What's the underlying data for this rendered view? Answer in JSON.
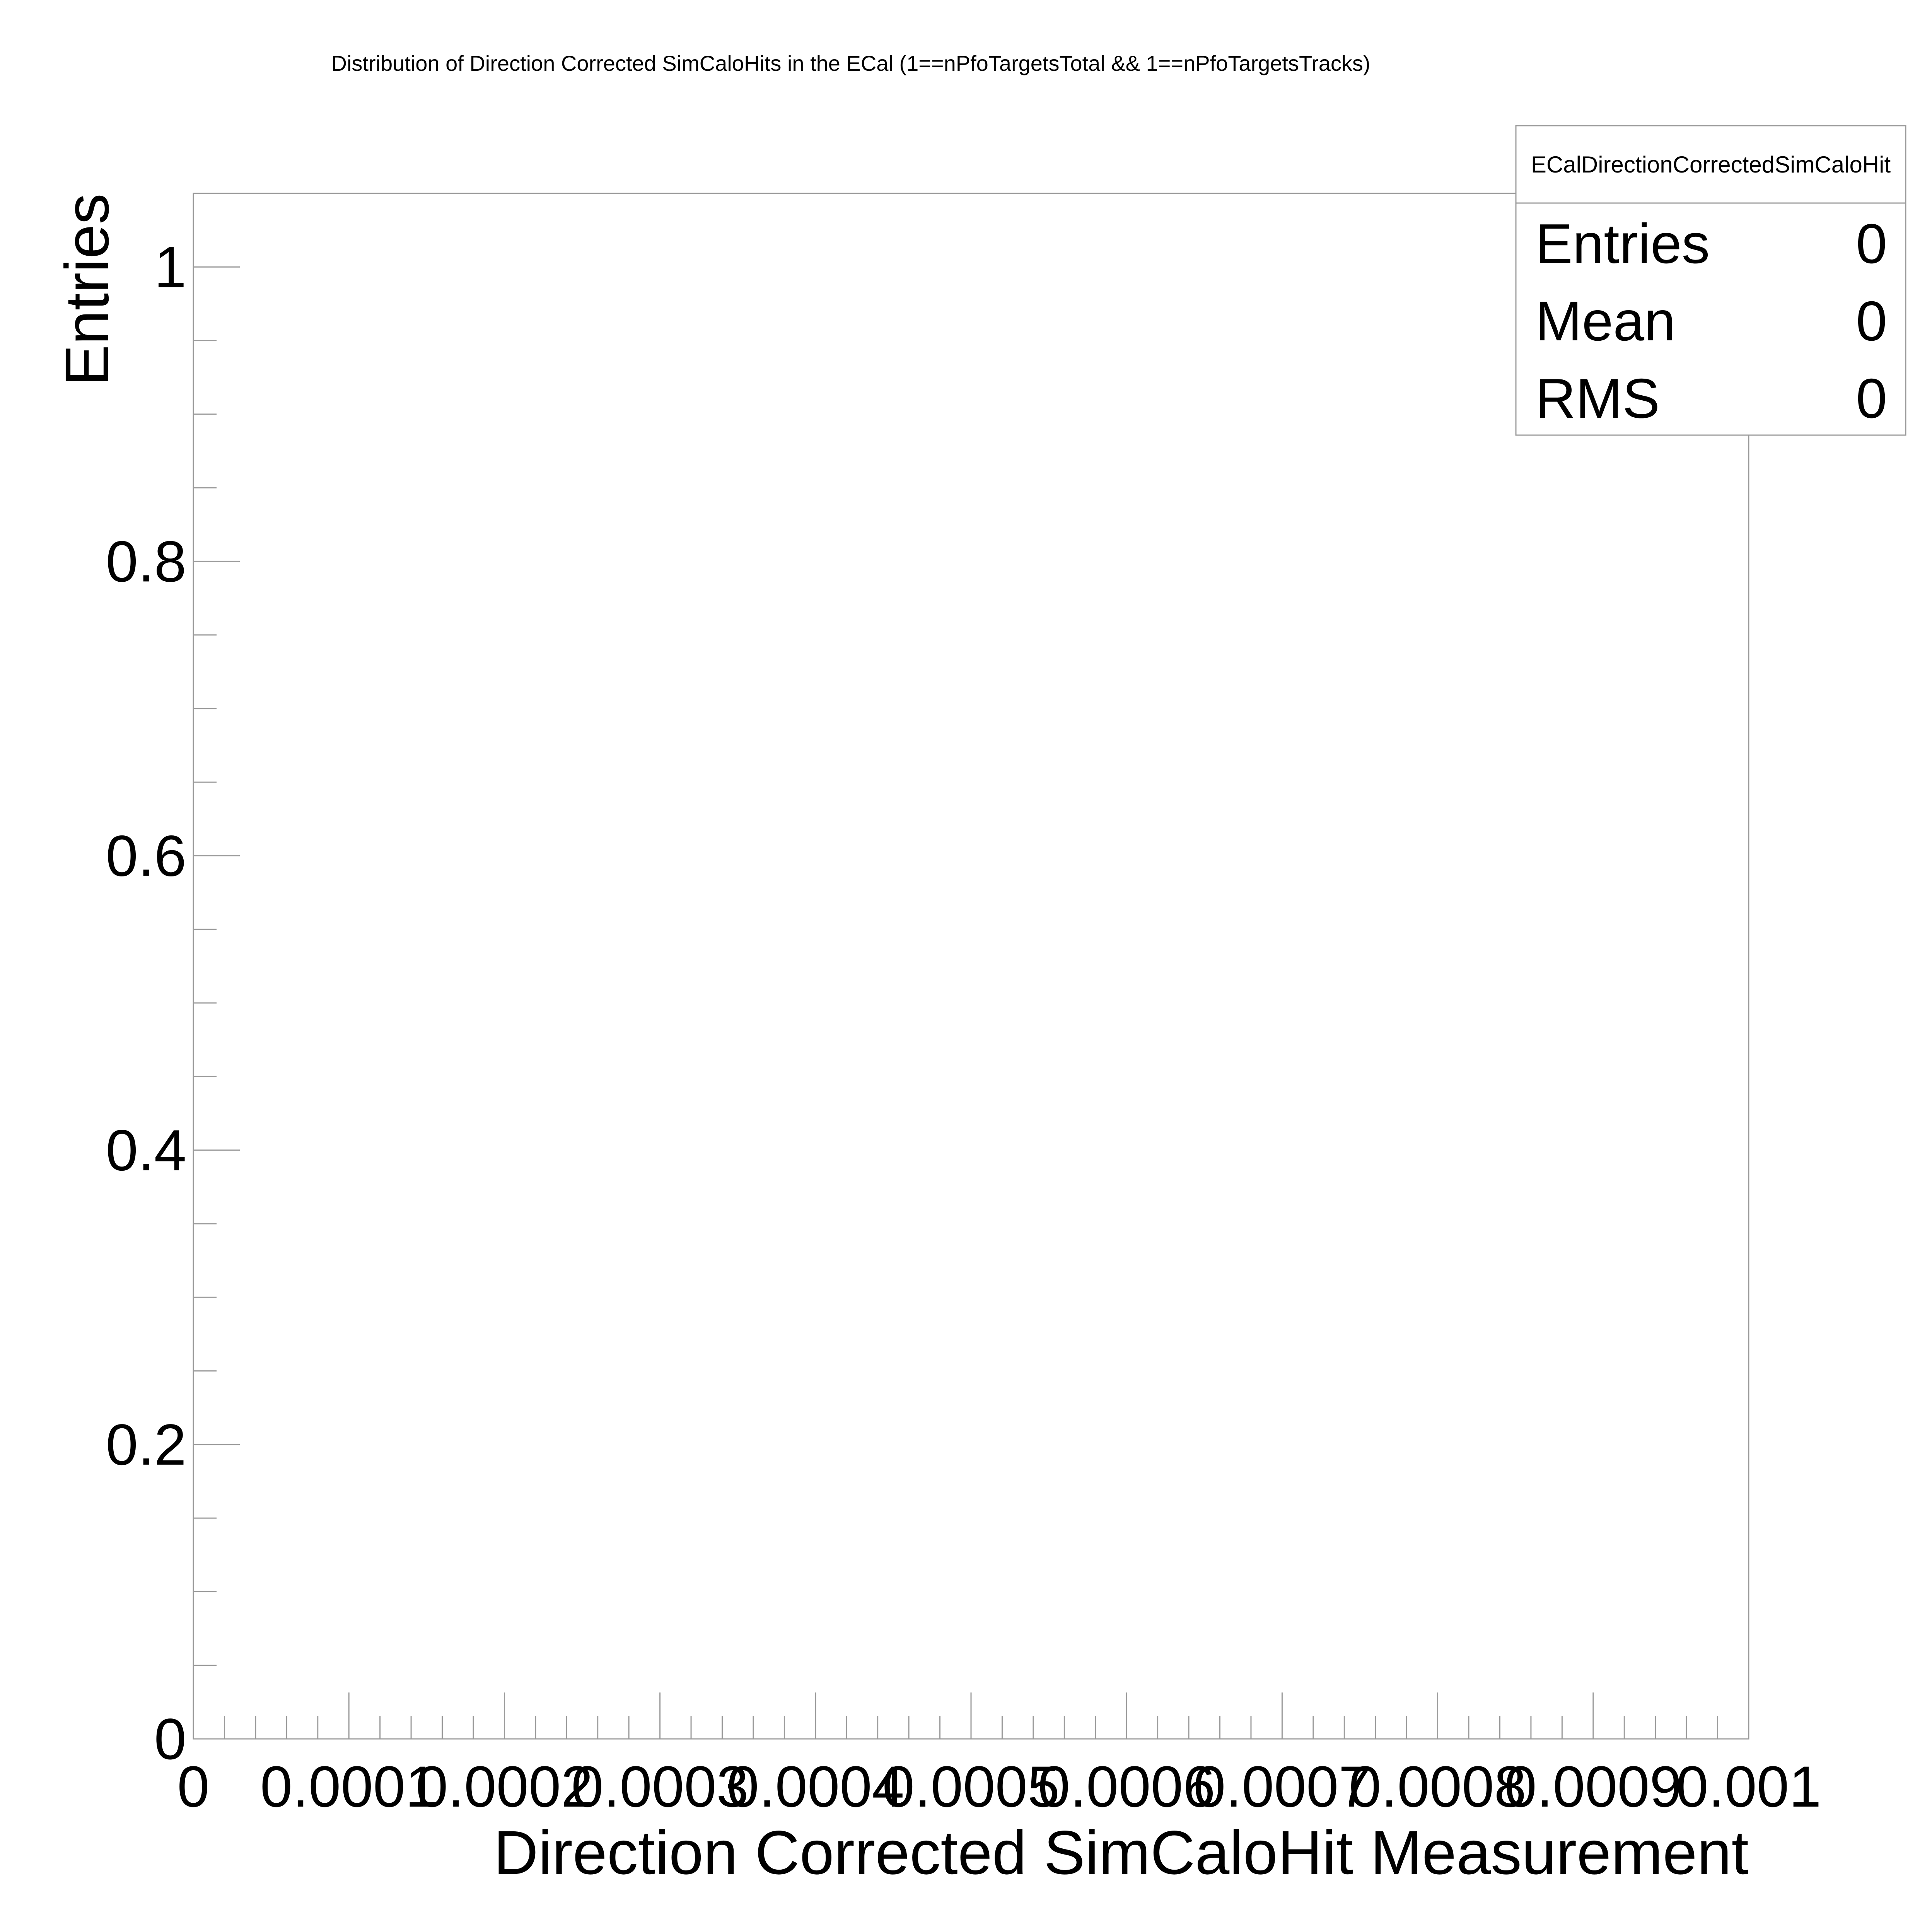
{
  "chart_data": {
    "type": "bar",
    "title": "Distribution of Direction Corrected SimCaloHits in the ECal (1==nPfoTargetsTotal && 1==nPfoTargetsTracks)",
    "xlabel": "Direction Corrected SimCaloHit Measurement",
    "ylabel": "Entries",
    "xlim": [
      0,
      0.001
    ],
    "ylim": [
      0,
      1.05
    ],
    "x_ticks": [
      0,
      0.0001,
      0.0002,
      0.0003,
      0.0004,
      0.0005,
      0.0006,
      0.0007,
      0.0008,
      0.0009,
      0.001
    ],
    "x_tick_labels": [
      "0",
      "0.0001",
      "0.0002",
      "0.0003",
      "0.0004",
      "0.0005",
      "0.0006",
      "0.0007",
      "0.0008",
      "0.0009",
      "0.001"
    ],
    "y_ticks": [
      0,
      0.2,
      0.4,
      0.6,
      0.8,
      1
    ],
    "y_tick_labels": [
      "0",
      "0.2",
      "0.4",
      "0.6",
      "0.8",
      "1"
    ],
    "series": [],
    "grid": false,
    "legend": "top-right",
    "stats_box": {
      "name": "ECalDirectionCorrectedSimCaloHit",
      "rows": [
        {
          "label": "Entries",
          "value": "0"
        },
        {
          "label": "Mean",
          "value": "0"
        },
        {
          "label": "RMS",
          "value": "0"
        }
      ]
    }
  }
}
